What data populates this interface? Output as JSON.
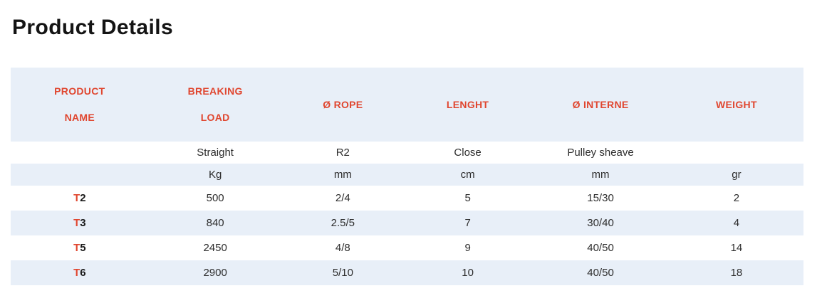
{
  "page": {
    "title": "Product Details"
  },
  "colors": {
    "accent_red": "#E0462F",
    "row_highlight_blue": "#E8EFF8",
    "body_text": "#2d2d2d",
    "title_text": "#141414"
  },
  "table": {
    "headers": [
      {
        "line1": "PRODUCT",
        "line2": "NAME"
      },
      {
        "line1": "BREAKING",
        "line2": "LOAD"
      },
      {
        "line1": "Ø ROPE",
        "line2": ""
      },
      {
        "line1": "LENGHT",
        "line2": ""
      },
      {
        "line1": "Ø INTERNE",
        "line2": ""
      },
      {
        "line1": "WEIGHT",
        "line2": ""
      }
    ],
    "type_row": {
      "product": "",
      "breaking_load": "Straight",
      "rope": "R2",
      "length": "Close",
      "interne": "Pulley sheave",
      "weight": ""
    },
    "units_row": {
      "product": "",
      "breaking_load": "Kg",
      "rope": "mm",
      "length": "cm",
      "interne": "mm",
      "weight": "gr"
    },
    "rows": [
      {
        "name_prefix": "T",
        "name_number": "2",
        "breaking_load": "500",
        "rope": "2/4",
        "length": "5",
        "interne": "15/30",
        "weight": "2"
      },
      {
        "name_prefix": "T",
        "name_number": "3",
        "breaking_load": "840",
        "rope": "2.5/5",
        "length": "7",
        "interne": "30/40",
        "weight": "4"
      },
      {
        "name_prefix": "T",
        "name_number": "5",
        "breaking_load": "2450",
        "rope": "4/8",
        "length": "9",
        "interne": "40/50",
        "weight": "14"
      },
      {
        "name_prefix": "T",
        "name_number": "6",
        "breaking_load": "2900",
        "rope": "5/10",
        "length": "10",
        "interne": "40/50",
        "weight": "18"
      }
    ]
  }
}
